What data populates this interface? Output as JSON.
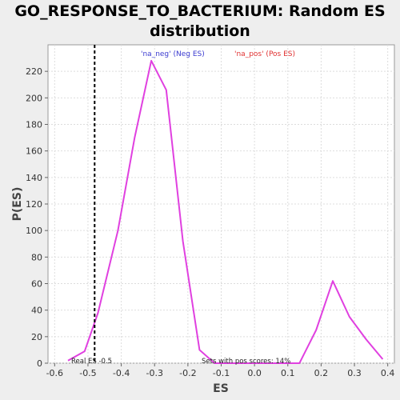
{
  "chart_data": {
    "type": "line",
    "title_line1": "GO_RESPONSE_TO_BACTERIUM: Random ES",
    "title_line2": "distribution",
    "xlabel": "ES",
    "ylabel": "P(ES)",
    "xlim": [
      -0.62,
      0.42
    ],
    "ylim": [
      0,
      240
    ],
    "x_ticks": [
      -0.6,
      -0.5,
      -0.4,
      -0.3,
      -0.2,
      -0.1,
      0.0,
      0.1,
      0.2,
      0.3,
      0.4
    ],
    "x_tick_labels": [
      "-0.6",
      "-0.5",
      "-0.4",
      "-0.3",
      "-0.2",
      "-0.1",
      "0.0",
      "0.1",
      "0.2",
      "0.3",
      "0.4"
    ],
    "y_ticks": [
      0,
      20,
      40,
      60,
      80,
      100,
      120,
      140,
      160,
      180,
      200,
      220
    ],
    "y_tick_labels": [
      "0",
      "20",
      "40",
      "60",
      "80",
      "100",
      "120",
      "140",
      "160",
      "180",
      "200",
      "220"
    ],
    "grid": true,
    "legend_position": "top",
    "legend": [
      {
        "label": "'na_neg' (Neg ES)",
        "color": "#3b3bd0"
      },
      {
        "label": "'na_pos' (Pos ES)",
        "color": "#e03030"
      }
    ],
    "series": [
      {
        "color": "#e040e0",
        "x": [
          -0.56,
          -0.51,
          -0.47,
          -0.41,
          -0.36,
          -0.31,
          -0.265,
          -0.215,
          -0.165,
          -0.12,
          -0.07,
          -0.02,
          0.03,
          0.085,
          0.135,
          0.185,
          0.235,
          0.285,
          0.335,
          0.385
        ],
        "y": [
          2,
          9,
          38,
          100,
          170,
          228,
          206,
          92,
          10,
          0,
          0,
          0,
          0,
          0,
          0,
          25,
          62,
          35,
          18,
          3
        ]
      }
    ],
    "real_es": {
      "x": -0.48,
      "label": "Real ES -0.5",
      "color": "#000000"
    },
    "annotation": "Sets with pos scores: 14%"
  }
}
